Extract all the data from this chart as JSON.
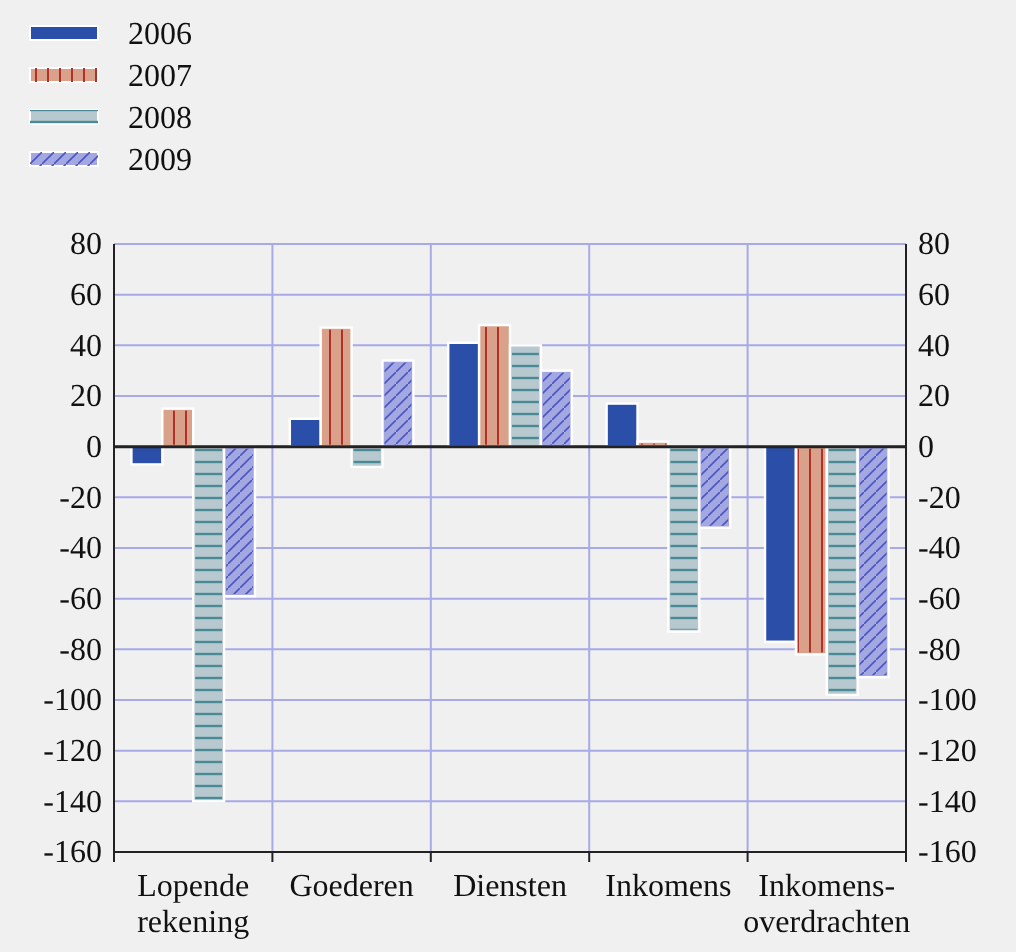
{
  "chart_data": {
    "type": "bar",
    "categories": [
      "Lopende\nrekening",
      "Goederen",
      "Diensten",
      "Inkomens",
      "Inkomens-\noverdrachten"
    ],
    "series": [
      {
        "name": "2006",
        "color": "#2b4ea8",
        "values": [
          -7,
          11,
          41,
          17,
          -77
        ]
      },
      {
        "name": "2007",
        "color": "#d9a08a",
        "values": [
          15,
          47,
          48,
          2,
          -82
        ]
      },
      {
        "name": "2008",
        "color": "#b7c8cf",
        "values": [
          -140,
          -8,
          40,
          -73,
          -98
        ]
      },
      {
        "name": "2009",
        "color": "#a4a8e0",
        "values": [
          -59,
          34,
          30,
          -32,
          -91
        ]
      }
    ],
    "ylim": [
      -160,
      80
    ],
    "yticks": [
      -160,
      -140,
      -120,
      -100,
      -80,
      -60,
      -40,
      -20,
      0,
      20,
      40,
      60,
      80
    ],
    "y2lim": [
      -160,
      80
    ],
    "y2ticks": [
      -160,
      -140,
      -120,
      -100,
      -80,
      -60,
      -40,
      -20,
      0,
      20,
      40,
      60,
      80
    ],
    "grid": true,
    "legend": "top left"
  }
}
